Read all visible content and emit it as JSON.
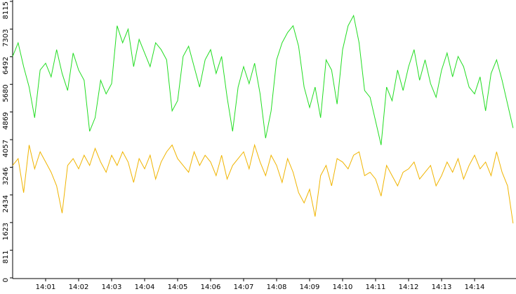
{
  "chart_data": {
    "type": "line",
    "categories": [
      null,
      null,
      null,
      null,
      null,
      null,
      "14:01",
      null,
      null,
      null,
      null,
      null,
      "14:02",
      null,
      null,
      null,
      null,
      null,
      "14:03",
      null,
      null,
      null,
      null,
      null,
      "14:04",
      null,
      null,
      null,
      null,
      null,
      "14:05",
      null,
      null,
      null,
      null,
      null,
      "14:06",
      null,
      null,
      null,
      null,
      null,
      "14:07",
      null,
      null,
      null,
      null,
      null,
      "14:08",
      null,
      null,
      null,
      null,
      null,
      "14:09",
      null,
      null,
      null,
      null,
      null,
      "14:10",
      null,
      null,
      null,
      null,
      null,
      "14:11",
      null,
      null,
      null,
      null,
      null,
      "14:12",
      null,
      null,
      null,
      null,
      null,
      "14:13",
      null,
      null,
      null,
      null,
      null,
      "14:14",
      null,
      null,
      null,
      null,
      null,
      null,
      null
    ],
    "series": [
      {
        "color": "#22dd22",
        "values": [
          6500,
          6900,
          6200,
          5600,
          4700,
          6100,
          6300,
          5900,
          6700,
          6000,
          5500,
          6600,
          6100,
          5800,
          4300,
          4700,
          5800,
          5400,
          5700,
          7400,
          6900,
          7300,
          6200,
          7000,
          6600,
          6200,
          6900,
          6700,
          6400,
          4900,
          5200,
          6500,
          6800,
          6200,
          5600,
          6400,
          6700,
          6000,
          6500,
          5300,
          4300,
          5600,
          6200,
          5700,
          6300,
          5400,
          4100,
          4900,
          6400,
          6900,
          7200,
          7400,
          6800,
          5600,
          5000,
          5600,
          4700,
          6400,
          6100,
          5100,
          6700,
          7400,
          7700,
          6900,
          5500,
          5300,
          4600,
          3900,
          5600,
          5200,
          6100,
          5500,
          6200,
          6700,
          5800,
          6400,
          5700,
          5300,
          6100,
          6600,
          5900,
          6500,
          6200,
          5600,
          5400,
          5900,
          4900,
          6000,
          6400,
          5800,
          5100,
          4400
        ]
      },
      {
        "color": "#f0b400",
        "values": [
          3300,
          3500,
          2500,
          3900,
          3200,
          3700,
          3400,
          3100,
          2700,
          1900,
          3300,
          3500,
          3200,
          3600,
          3300,
          3800,
          3400,
          3100,
          3600,
          3300,
          3700,
          3400,
          2800,
          3500,
          3200,
          3600,
          2900,
          3400,
          3700,
          3900,
          3500,
          3300,
          3100,
          3700,
          3300,
          3600,
          3400,
          3000,
          3600,
          2900,
          3300,
          3500,
          3700,
          3200,
          3900,
          3400,
          3000,
          3600,
          3300,
          2800,
          3500,
          3100,
          2500,
          2200,
          2600,
          1800,
          3000,
          3300,
          2700,
          3500,
          3400,
          3200,
          3600,
          3700,
          3000,
          3100,
          2900,
          2400,
          3300,
          3000,
          2700,
          3100,
          3200,
          3400,
          2900,
          3100,
          3300,
          2700,
          3000,
          3400,
          3100,
          3500,
          2900,
          3300,
          3600,
          3200,
          3400,
          3000,
          3700,
          3100,
          2700,
          1600
        ]
      }
    ],
    "ylim": [
      0,
      8115
    ],
    "yticks": [
      0,
      811,
      1623,
      2434,
      3246,
      4057,
      4869,
      5680,
      6492,
      7303,
      8115
    ]
  }
}
